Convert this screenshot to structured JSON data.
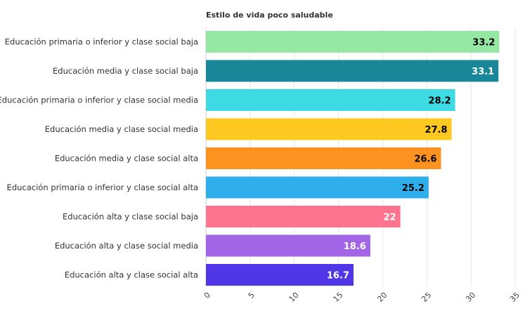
{
  "chart_data": {
    "type": "bar",
    "orientation": "horizontal",
    "title": "Estilo de vida poco saludable",
    "xlabel": "",
    "ylabel": "",
    "xlim": [
      0,
      35
    ],
    "xticks": [
      "0",
      "5",
      "10",
      "15",
      "20",
      "25",
      "30",
      "35"
    ],
    "grid": true,
    "categories": [
      "Educación primaria o inferior y clase social baja",
      "Educación media y clase social baja",
      "Educación primaria o inferior y clase social media",
      "Educación media y clase social media",
      "Educación media y clase social alta",
      "Educación primaria o inferior y clase social alta",
      "Educación alta y clase social baja",
      "Educación alta y clase social media",
      "Educación alta y clase social alta"
    ],
    "values": [
      33.2,
      33.1,
      28.2,
      27.8,
      26.6,
      25.2,
      22,
      18.6,
      16.7
    ],
    "value_labels": [
      "33.2",
      "33.1",
      "28.2",
      "27.8",
      "26.6",
      "25.2",
      "22",
      "18.6",
      "16.7"
    ],
    "colors": [
      "#95e8a4",
      "#1a8799",
      "#3edbe5",
      "#fdc920",
      "#fd9220",
      "#2eaeea",
      "#fd7490",
      "#a265e6",
      "#5036e6"
    ],
    "label_colors": [
      "#000000",
      "#ffffff",
      "#000000",
      "#000000",
      "#000000",
      "#000000",
      "#ffffff",
      "#ffffff",
      "#ffffff"
    ]
  }
}
